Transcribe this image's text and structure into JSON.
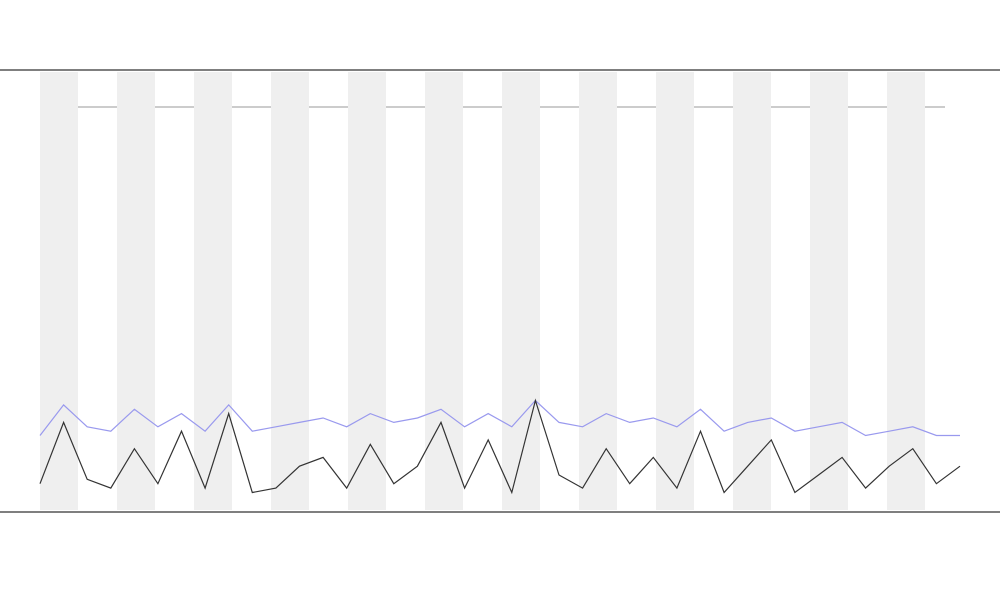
{
  "chart_data": {
    "type": "line",
    "x": [
      1,
      2,
      3,
      4,
      5,
      6,
      7,
      8,
      9,
      10,
      11,
      12,
      13,
      14,
      15,
      16,
      17,
      18,
      19,
      20,
      21,
      22,
      23,
      24,
      25,
      26,
      27,
      28,
      29,
      30,
      31,
      32,
      33,
      34,
      35,
      36,
      37,
      38,
      39,
      40
    ],
    "xlim": [
      1,
      40
    ],
    "ylim": [
      0,
      100
    ],
    "shaded_bands": true,
    "series": [
      {
        "color": "#9999ee",
        "values": [
          17,
          24,
          19,
          18,
          23,
          19,
          22,
          18,
          24,
          18,
          19,
          20,
          21,
          19,
          22,
          20,
          21,
          23,
          19,
          22,
          19,
          25,
          20,
          19,
          22,
          20,
          21,
          19,
          23,
          18,
          20,
          21,
          18,
          19,
          20,
          17,
          18,
          19,
          17,
          17
        ]
      },
      {
        "color": "#333333",
        "values": [
          6,
          20,
          7,
          5,
          14,
          6,
          18,
          5,
          22,
          4,
          5,
          10,
          12,
          5,
          15,
          6,
          10,
          20,
          5,
          16,
          4,
          25,
          8,
          5,
          14,
          6,
          12,
          5,
          18,
          4,
          10,
          16,
          4,
          8,
          12,
          5,
          10,
          14,
          6,
          10
        ]
      }
    ]
  }
}
